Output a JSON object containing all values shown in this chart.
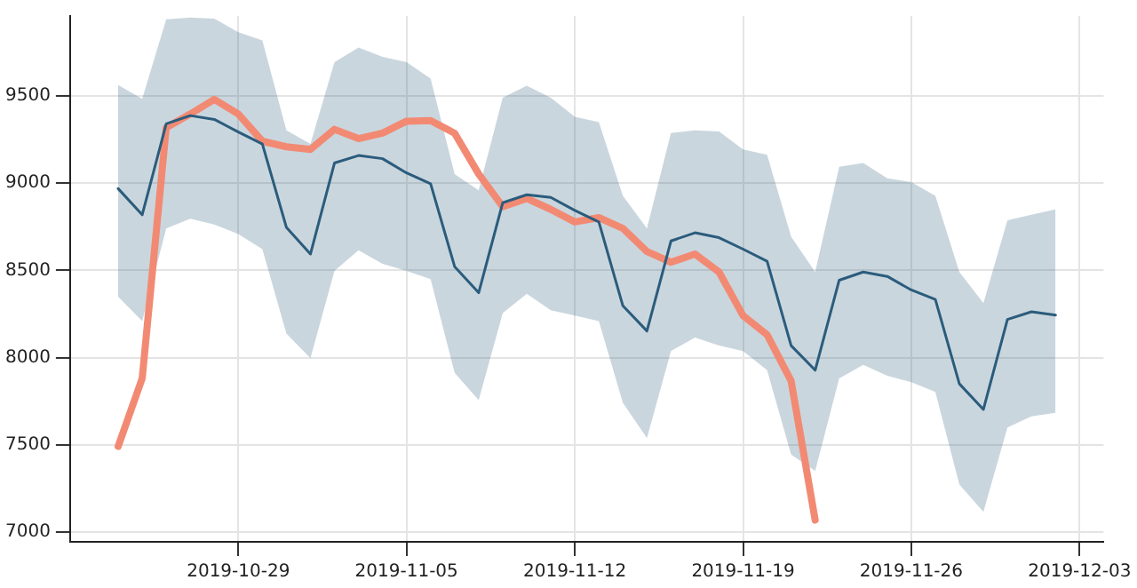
{
  "chart_data": {
    "type": "line",
    "x": [
      "2019-10-24",
      "2019-10-25",
      "2019-10-26",
      "2019-10-27",
      "2019-10-28",
      "2019-10-29",
      "2019-10-30",
      "2019-10-31",
      "2019-11-01",
      "2019-11-02",
      "2019-11-03",
      "2019-11-04",
      "2019-11-05",
      "2019-11-06",
      "2019-11-07",
      "2019-11-08",
      "2019-11-09",
      "2019-11-10",
      "2019-11-11",
      "2019-11-12",
      "2019-11-13",
      "2019-11-14",
      "2019-11-15",
      "2019-11-16",
      "2019-11-17",
      "2019-11-18",
      "2019-11-19",
      "2019-11-20",
      "2019-11-21",
      "2019-11-22",
      "2019-11-23",
      "2019-11-24",
      "2019-11-25",
      "2019-11-26",
      "2019-11-27",
      "2019-11-28",
      "2019-11-29",
      "2019-11-30",
      "2019-12-01",
      "2019-12-02"
    ],
    "series": [
      {
        "color": "#2b5c7c",
        "values": [
          8969,
          8819,
          9341,
          9388,
          9366,
          9294,
          9225,
          8747,
          8594,
          9116,
          9159,
          9141,
          9059,
          8997,
          8522,
          8372,
          8888,
          8934,
          8919,
          8844,
          8778,
          8297,
          8153,
          8669,
          8716,
          8688,
          8622,
          8553,
          8069,
          7928,
          8444,
          8491,
          8466,
          8388,
          8334,
          7850,
          7703,
          8219,
          8263,
          8244
        ],
        "lower": [
          8350,
          8209,
          8741,
          8797,
          8763,
          8709,
          8622,
          8138,
          7997,
          8497,
          8616,
          8538,
          8497,
          8450,
          7913,
          7756,
          8256,
          8366,
          8272,
          8241,
          8209,
          7741,
          7538,
          8038,
          8116,
          8069,
          8038,
          7928,
          7444,
          7350,
          7881,
          7959,
          7897,
          7859,
          7803,
          7272,
          7116,
          7600,
          7663,
          7684
        ],
        "upper": [
          9563,
          9484,
          9940,
          9950,
          9944,
          9866,
          9819,
          9303,
          9225,
          9694,
          9778,
          9725,
          9694,
          9600,
          9053,
          8959,
          9491,
          9559,
          9491,
          9381,
          9350,
          8928,
          8741,
          9288,
          9303,
          9297,
          9194,
          9163,
          8694,
          8491,
          9094,
          9116,
          9028,
          9006,
          8928,
          8491,
          8313,
          8788,
          8819,
          8850
        ]
      },
      {
        "color": "#f28a73",
        "values": [
          7491,
          7881,
          9319,
          9397,
          9481,
          9397,
          9241,
          9209,
          9194,
          9309,
          9256,
          9287,
          9356,
          9359,
          9287,
          9053,
          8866,
          8913,
          8850,
          8778,
          8803,
          8741,
          8609,
          8547,
          8594,
          8491,
          8241,
          8131,
          7866,
          7069,
          null,
          null,
          null,
          null,
          null,
          null,
          null,
          null,
          null,
          null
        ]
      }
    ],
    "xlim": [
      "2019-10-22",
      "2019-12-04"
    ],
    "xticks": [
      "2019-10-29",
      "2019-11-05",
      "2019-11-12",
      "2019-11-19",
      "2019-11-26",
      "2019-12-03"
    ],
    "ylim": [
      6944,
      9959
    ],
    "yticks": [
      7000,
      7500,
      8000,
      8500,
      9000,
      9500
    ],
    "grid": true,
    "legend": false,
    "marker": "none",
    "line_style": "solid"
  }
}
